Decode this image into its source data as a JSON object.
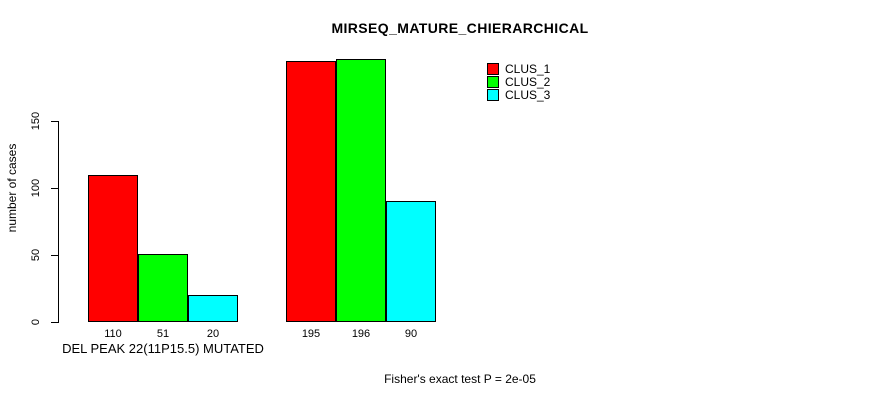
{
  "chart_data": {
    "type": "bar",
    "title": "MIRSEQ_MATURE_CHIERARCHICAL",
    "ylabel": "number of cases",
    "xlabel": "",
    "yticks": [
      0,
      50,
      100,
      150
    ],
    "ylim": [
      0,
      200
    ],
    "grid": false,
    "legend_position": "top-right",
    "background": "#ffffff",
    "axis_color": "#000000",
    "series": [
      {
        "name": "CLUS_1",
        "color": "#ff0000"
      },
      {
        "name": "CLUS_2",
        "color": "#00ff00"
      },
      {
        "name": "CLUS_3",
        "color": "#00ffff"
      }
    ],
    "groups": [
      {
        "label": "DEL PEAK 22(11P15.5) MUTATED",
        "values": [
          110,
          51,
          20
        ]
      },
      {
        "label": "",
        "values": [
          195,
          196,
          90
        ]
      }
    ],
    "annotation": "Fisher's exact test P = 2e-05"
  }
}
